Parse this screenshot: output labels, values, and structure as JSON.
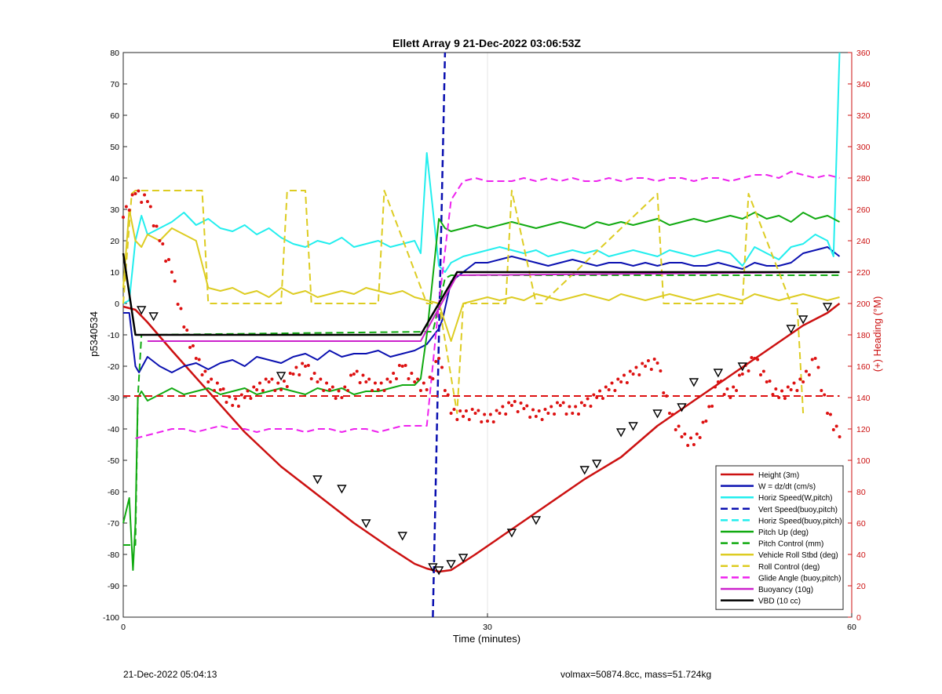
{
  "chart_data": {
    "type": "line",
    "title": "Ellett Array 9 21-Dec-2022 03:06:53Z",
    "xlabel": "Time (minutes)",
    "ylabel_left": "p5340534",
    "ylabel_right": "(+) Heading (°M)",
    "xlim": [
      0,
      60
    ],
    "ylim_left": [
      -100,
      80
    ],
    "ylim_right": [
      0,
      360
    ],
    "x_ticks": [
      0,
      30,
      60
    ],
    "y_ticks_left": [
      -100,
      -90,
      -80,
      -70,
      -60,
      -50,
      -40,
      -30,
      -20,
      -10,
      0,
      10,
      20,
      30,
      40,
      50,
      60,
      70,
      80
    ],
    "y_ticks_right": [
      0,
      20,
      40,
      60,
      80,
      100,
      120,
      140,
      160,
      180,
      200,
      220,
      240,
      260,
      280,
      300,
      320,
      340,
      360
    ],
    "grid": "x-only",
    "legend_position": "bottom-right",
    "colors": {
      "height": "#cc1111",
      "w": "#0a10b0",
      "horiz_w": "#22eeee",
      "pitch": "#11aa11",
      "roll": "#ddcc22",
      "glide": "#ee22ee",
      "buoyancy": "#cc22cc",
      "vbd": "#000000",
      "heading": "#dd1111"
    },
    "series": [
      {
        "key": "height",
        "name": "Height (3m)",
        "style": "solid",
        "axis": "left",
        "x": [
          0,
          1,
          2,
          4,
          7,
          10,
          13,
          16,
          19,
          22,
          24,
          25,
          26,
          27,
          29,
          32,
          35,
          38,
          41,
          44,
          47,
          50,
          53,
          56,
          58,
          59
        ],
        "y": [
          -1,
          -2,
          -6,
          -15,
          -28,
          -41,
          -52,
          -61,
          -70,
          -78,
          -83,
          -84.5,
          -85.5,
          -85,
          -80,
          -72,
          -64,
          -56,
          -49,
          -39,
          -31,
          -23,
          -15,
          -7,
          -3,
          0
        ]
      },
      {
        "key": "w",
        "name": "W = dz/dt (cm/s)",
        "style": "solid",
        "axis": "left",
        "x": [
          0,
          0.5,
          1,
          1.3,
          2,
          3,
          4,
          5,
          6,
          7,
          8,
          9,
          10,
          11,
          12,
          13,
          14,
          15,
          16,
          17,
          18,
          19,
          20,
          21,
          22,
          23,
          24,
          25,
          26,
          26.3,
          27,
          28,
          29,
          30,
          31,
          32,
          33,
          34,
          35,
          36,
          37,
          38,
          39,
          40,
          41,
          42,
          43,
          44,
          45,
          46,
          47,
          48,
          49,
          50,
          51,
          52,
          53,
          54,
          55,
          56,
          57,
          58,
          59
        ],
        "y": [
          -3,
          -3,
          -20,
          -22,
          -17,
          -20,
          -22,
          -20,
          -19,
          -21,
          -19,
          -18,
          -20,
          -17,
          -18,
          -19,
          -17,
          -16,
          -18,
          -15,
          -17,
          -16,
          -16,
          -15,
          -17,
          -16,
          -15,
          -13,
          -8,
          -5,
          7,
          10,
          13,
          13,
          14,
          15,
          14,
          13,
          12,
          13,
          14,
          13,
          12,
          13,
          13,
          12,
          13,
          12,
          13,
          13,
          12,
          12,
          13,
          12,
          11,
          13,
          12,
          12,
          13,
          16,
          17,
          18,
          15
        ]
      },
      {
        "key": "horiz_w",
        "name": "Horiz Speed(W,pitch)",
        "style": "solid",
        "axis": "left",
        "x": [
          0,
          0.5,
          1,
          1.5,
          2,
          3,
          4,
          5,
          6,
          7,
          8,
          9,
          10,
          11,
          12,
          13,
          14,
          15,
          16,
          17,
          18,
          19,
          20,
          21,
          22,
          23,
          24,
          24.5,
          25,
          25.5,
          26,
          26.5,
          27,
          28,
          29,
          30,
          31,
          32,
          33,
          34,
          35,
          36,
          37,
          38,
          39,
          40,
          41,
          42,
          43,
          44,
          45,
          46,
          47,
          48,
          49,
          50,
          51,
          52,
          53,
          54,
          55,
          56,
          57,
          58,
          58.5,
          59
        ],
        "y": [
          0,
          1,
          20,
          28,
          22,
          24,
          26,
          29,
          25,
          27,
          24,
          23,
          25,
          22,
          24,
          21,
          19,
          18,
          20,
          19,
          21,
          18,
          19,
          20,
          18,
          19,
          20,
          16,
          48,
          30,
          12,
          10,
          13,
          15,
          16,
          17,
          18,
          17,
          16,
          17,
          15,
          16,
          17,
          16,
          17,
          15,
          16,
          17,
          16,
          15,
          17,
          16,
          15,
          16,
          17,
          16,
          12,
          18,
          16,
          14,
          18,
          19,
          22,
          20,
          15,
          80
        ]
      },
      {
        "key": "vert_buoy",
        "name": "Vert Speed(buoy,pitch)",
        "style": "dashed",
        "axis": "left",
        "x": [
          25.5,
          26.5
        ],
        "y": [
          -100,
          80
        ]
      },
      {
        "key": "horiz_buoy",
        "name": "Horiz Speed(buoy,pitch)",
        "style": "dashed",
        "axis": "left",
        "x": [],
        "y": []
      },
      {
        "key": "pitch",
        "name": "Pitch Up (deg)",
        "style": "solid",
        "axis": "left",
        "x": [
          0,
          0.5,
          0.8,
          1,
          1.2,
          1.5,
          2,
          2.5,
          3,
          4,
          5,
          6,
          7,
          8,
          9,
          10,
          11,
          12,
          13,
          14,
          15,
          16,
          17,
          18,
          19,
          20,
          21,
          22,
          23,
          24,
          24.5,
          25,
          26,
          26.5,
          27,
          28,
          29,
          30,
          31,
          32,
          33,
          34,
          35,
          36,
          37,
          38,
          39,
          40,
          41,
          42,
          43,
          44,
          45,
          46,
          47,
          48,
          49,
          50,
          51,
          52,
          53,
          54,
          55,
          56,
          57,
          58,
          59
        ],
        "y": [
          -70,
          -62,
          -85,
          -70,
          -30,
          -28,
          -31,
          -30,
          -29,
          -27,
          -29,
          -28,
          -27,
          -29,
          -28,
          -27,
          -29,
          -28,
          -27,
          -28,
          -29,
          -27,
          -28,
          -27,
          -29,
          -28,
          -28,
          -27,
          -26,
          -26,
          -24,
          -10,
          27,
          24,
          23,
          24,
          25,
          24,
          25,
          26,
          25,
          24,
          25,
          26,
          25,
          24,
          26,
          25,
          26,
          25,
          26,
          27,
          25,
          26,
          27,
          26,
          27,
          28,
          27,
          29,
          27,
          28,
          26,
          29,
          27,
          28,
          26
        ]
      },
      {
        "key": "pitch_ctrl",
        "name": "Pitch Control (mm)",
        "style": "dashed",
        "axis": "left",
        "x": [
          0,
          1,
          1.2,
          1.5,
          2,
          25,
          25.5,
          26.5,
          27,
          59
        ],
        "y": [
          -77,
          -77,
          -30,
          -10,
          -10,
          -9,
          -9,
          8,
          9,
          9
        ]
      },
      {
        "key": "roll",
        "name": "Vehicle Roll Stbd (deg)",
        "style": "solid",
        "axis": "left",
        "x": [
          0,
          0.5,
          1,
          1.5,
          2,
          3,
          4,
          5,
          6,
          7,
          8,
          9,
          10,
          11,
          12,
          13,
          14,
          15,
          16,
          17,
          18,
          19,
          20,
          21,
          22,
          23,
          24,
          25,
          26,
          27,
          28,
          29,
          30,
          31,
          32,
          33,
          34,
          35,
          36,
          37,
          38,
          39,
          40,
          41,
          42,
          43,
          44,
          45,
          46,
          47,
          48,
          49,
          50,
          51,
          52,
          53,
          54,
          55,
          56,
          57,
          58,
          59
        ],
        "y": [
          5,
          30,
          20,
          18,
          22,
          20,
          24,
          22,
          20,
          5,
          4,
          5,
          3,
          4,
          2,
          5,
          3,
          4,
          2,
          3,
          4,
          3,
          5,
          4,
          3,
          4,
          2,
          1,
          0,
          -12,
          0,
          1,
          2,
          1,
          2,
          1,
          3,
          2,
          1,
          2,
          3,
          2,
          1,
          3,
          2,
          1,
          2,
          3,
          2,
          1,
          2,
          3,
          2,
          1,
          3,
          2,
          1,
          2,
          3,
          2,
          1,
          2
        ]
      },
      {
        "key": "roll_ctrl",
        "name": "Roll Control (deg)",
        "style": "dashed",
        "axis": "left",
        "x": [
          0,
          0.7,
          1,
          1.5,
          6.5,
          7,
          13,
          13.5,
          15,
          15.5,
          21,
          21.5,
          25,
          26,
          27.5,
          28,
          31.5,
          32,
          34,
          34.5,
          44,
          44.5,
          51,
          51.5,
          55,
          55.5,
          56
        ],
        "y": [
          0,
          35,
          36,
          36,
          36,
          0,
          0,
          36,
          36,
          0,
          0,
          36,
          0,
          0,
          -35,
          0,
          0,
          36,
          0,
          0,
          35,
          0,
          0,
          35,
          0,
          0,
          -35
        ]
      },
      {
        "key": "glide",
        "name": "Glide Angle (buoy,pitch)",
        "style": "dashed",
        "axis": "left",
        "x": [
          1,
          2,
          3,
          4,
          5,
          6,
          7,
          8,
          9,
          10,
          11,
          12,
          13,
          14,
          15,
          16,
          17,
          18,
          19,
          20,
          21,
          22,
          23,
          24,
          25,
          26,
          27,
          28,
          29,
          30,
          31,
          32,
          33,
          34,
          35,
          36,
          37,
          38,
          39,
          40,
          41,
          42,
          43,
          44,
          45,
          46,
          47,
          48,
          49,
          50,
          51,
          52,
          53,
          54,
          55,
          56,
          57,
          58,
          59
        ],
        "y": [
          -43,
          -42,
          -41,
          -40,
          -40,
          -41,
          -40,
          -39,
          -40,
          -40,
          -41,
          -40,
          -40,
          -40,
          -41,
          -40,
          -40,
          -41,
          -40,
          -40,
          -41,
          -40,
          -39,
          -39,
          -39,
          0,
          33,
          39,
          40,
          39,
          39,
          39,
          40,
          39,
          40,
          39,
          40,
          39,
          39,
          40,
          39,
          40,
          40,
          39,
          40,
          40,
          39,
          40,
          40,
          39,
          40,
          41,
          41,
          40,
          42,
          41,
          40,
          41,
          40
        ]
      },
      {
        "key": "buoyancy",
        "name": "Buoyancy (10g)",
        "style": "solid",
        "axis": "left",
        "x": [
          2,
          24.5,
          27.5,
          59
        ],
        "y": [
          -12,
          -12,
          9,
          10
        ]
      },
      {
        "key": "vbd",
        "name": "VBD (10 cc)",
        "style": "solid",
        "axis": "left",
        "x": [
          0,
          1,
          2,
          24.5,
          27.5,
          59
        ],
        "y": [
          16,
          -10,
          -10,
          -10,
          10,
          10
        ]
      },
      {
        "key": "heading",
        "name": "",
        "style": "dotted",
        "axis": "right",
        "x": [
          0,
          1,
          2,
          3,
          4,
          5,
          6,
          7,
          8,
          9,
          10,
          11,
          12,
          13,
          14,
          15,
          16,
          17,
          18,
          19,
          20,
          21,
          22,
          23,
          24,
          25,
          26,
          27,
          28,
          29,
          30,
          31,
          32,
          33,
          34,
          35,
          36,
          37,
          38,
          39,
          40,
          41,
          42,
          43,
          44,
          45,
          46,
          47,
          48,
          49,
          50,
          51,
          52,
          53,
          54,
          55,
          56,
          57,
          58,
          59
        ],
        "y": [
          255,
          270,
          265,
          240,
          220,
          185,
          165,
          150,
          145,
          135,
          140,
          145,
          150,
          145,
          155,
          160,
          150,
          145,
          140,
          155,
          150,
          145,
          150,
          160,
          150,
          145,
          165,
          130,
          128,
          130,
          125,
          130,
          135,
          133,
          128,
          130,
          135,
          130,
          135,
          140,
          145,
          150,
          155,
          160,
          162,
          130,
          115,
          110,
          125,
          150,
          140,
          155,
          165,
          150,
          140,
          145,
          150,
          165,
          130,
          115
        ]
      },
      {
        "key": "heading_ref",
        "name": "",
        "style": "dashed",
        "axis": "right",
        "x": [
          0,
          59
        ],
        "y": [
          141,
          141
        ]
      }
    ],
    "markers": {
      "x": [
        1.5,
        2.5,
        13,
        16,
        18,
        20,
        23,
        25.5,
        26,
        27,
        28,
        32,
        34,
        38,
        39,
        41,
        42,
        44,
        46,
        47,
        49,
        51,
        55,
        56,
        58
      ],
      "y": [
        -2,
        -4,
        -23,
        -56,
        -59,
        -70,
        -74,
        -84,
        -85,
        -83,
        -81,
        -73,
        -69,
        -53,
        -51,
        -41,
        -39,
        -35,
        -33,
        -25,
        -22,
        -20,
        -8,
        -5,
        -1
      ]
    },
    "footer": {
      "left": "21-Dec-2022 05:04:13",
      "right": "volmax=50874.8cc, mass=51.724kg"
    }
  }
}
